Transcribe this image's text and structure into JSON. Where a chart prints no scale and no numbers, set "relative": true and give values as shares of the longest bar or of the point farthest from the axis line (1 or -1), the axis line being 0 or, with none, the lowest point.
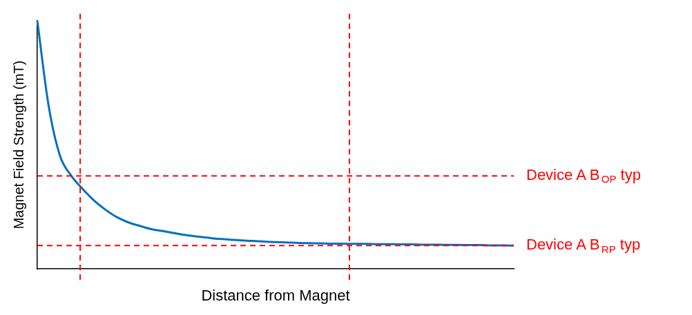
{
  "chart_data": {
    "type": "line",
    "relative": true,
    "xlabel": "Distance from Magnet",
    "ylabel": "Magnet Field Strength (mT)",
    "categories": [
      null,
      null,
      null,
      null,
      null,
      null,
      null,
      null,
      null,
      null,
      null,
      null,
      null,
      null,
      null,
      null,
      null,
      null,
      null,
      null,
      null,
      null,
      null,
      null,
      null,
      null,
      null,
      null,
      null,
      null,
      null,
      null,
      null,
      null,
      null,
      null,
      null,
      null,
      null,
      null,
      null,
      null,
      null
    ],
    "series": [
      {
        "color": "#0070c0",
        "values": [
          1.0,
          0.657,
          0.456,
          0.375,
          0.322,
          0.276,
          0.239,
          0.209,
          0.188,
          0.174,
          0.161,
          0.153,
          0.145,
          0.137,
          0.131,
          0.126,
          0.121,
          0.118,
          0.115,
          0.113,
          0.11,
          0.108,
          0.107,
          0.105,
          0.104,
          0.103,
          0.102,
          0.102,
          0.101,
          0.101,
          0.1,
          0.1,
          0.099,
          0.099,
          0.098,
          0.098,
          0.097,
          0.097,
          0.096,
          0.096,
          0.095,
          0.095,
          0.094
        ]
      }
    ],
    "ref_lines": [
      {
        "axis": "y",
        "value": 0.375,
        "label": "Device A B$_{OP}$ typ",
        "color": "#ff0000",
        "line_style": "dashed"
      },
      {
        "axis": "y",
        "value": 0.094,
        "label": "Device A B$_{RP}$ typ",
        "color": "#ff0000",
        "line_style": "dashed"
      }
    ],
    "grid": false,
    "legend": false,
    "marker": "none",
    "line_style": "solid"
  }
}
